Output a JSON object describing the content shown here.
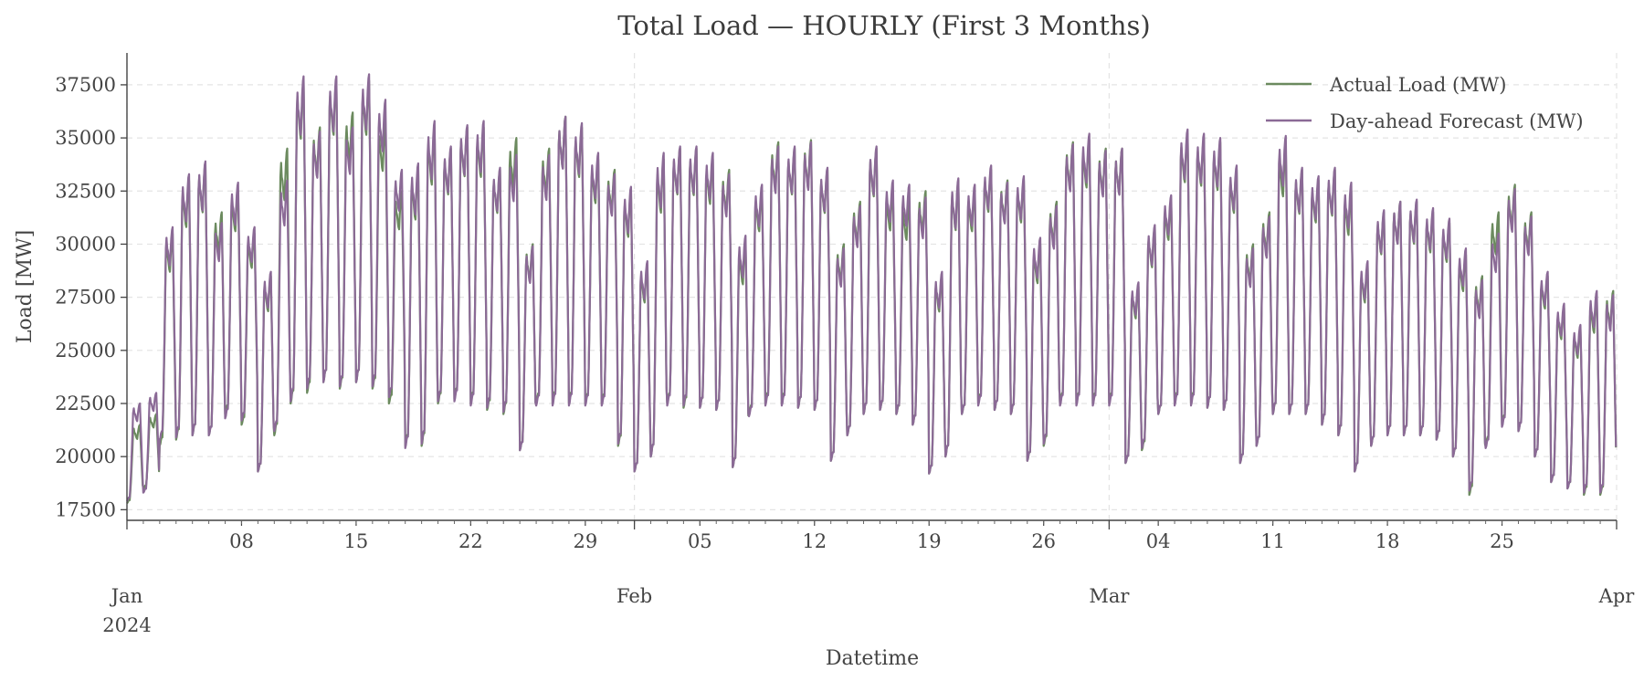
{
  "chart_data": {
    "type": "line",
    "title": "Total Load — HOURLY (First 3 Months)",
    "xlabel": "Datetime",
    "ylabel": "Load [MW]",
    "x_range": [
      "2024-01-01T00:00",
      "2024-04-01T00:00"
    ],
    "ylim": [
      17000,
      39000
    ],
    "y_ticks": [
      17500,
      20000,
      22500,
      25000,
      27500,
      30000,
      32500,
      35000,
      37500
    ],
    "x_minor_ticks": [
      {
        "date": "2024-01-08",
        "label": "08"
      },
      {
        "date": "2024-01-15",
        "label": "15"
      },
      {
        "date": "2024-01-22",
        "label": "22"
      },
      {
        "date": "2024-01-29",
        "label": "29"
      },
      {
        "date": "2024-02-05",
        "label": "05"
      },
      {
        "date": "2024-02-12",
        "label": "12"
      },
      {
        "date": "2024-02-19",
        "label": "19"
      },
      {
        "date": "2024-02-26",
        "label": "26"
      },
      {
        "date": "2024-03-04",
        "label": "04"
      },
      {
        "date": "2024-03-11",
        "label": "11"
      },
      {
        "date": "2024-03-18",
        "label": "18"
      },
      {
        "date": "2024-03-25",
        "label": "25"
      }
    ],
    "x_major_ticks": [
      {
        "date": "2024-01-01",
        "label": "Jan",
        "sublabel": "2024"
      },
      {
        "date": "2024-02-01",
        "label": "Feb",
        "sublabel": ""
      },
      {
        "date": "2024-03-01",
        "label": "Mar",
        "sublabel": ""
      },
      {
        "date": "2024-04-01",
        "label": "Apr",
        "sublabel": ""
      }
    ],
    "grid": true,
    "legend_position": "top-right",
    "series": [
      {
        "name": "Actual Load (MW)",
        "color": "#6b8a5e",
        "daily_peak_min": [
          [
            "2024-01-01",
            21500,
            17800
          ],
          [
            "2024-01-02",
            22000,
            18500
          ],
          [
            "2024-01-03",
            30500,
            20500
          ],
          [
            "2024-01-04",
            33000,
            20800
          ],
          [
            "2024-01-05",
            33800,
            21000
          ],
          [
            "2024-01-06",
            31500,
            21000
          ],
          [
            "2024-01-07",
            32500,
            22000
          ],
          [
            "2024-01-08",
            30500,
            21500
          ],
          [
            "2024-01-09",
            28500,
            19300
          ],
          [
            "2024-01-10",
            34500,
            21000
          ],
          [
            "2024-01-11",
            37700,
            22500
          ],
          [
            "2024-01-12",
            35500,
            23000
          ],
          [
            "2024-01-13",
            37700,
            23500
          ],
          [
            "2024-01-14",
            36200,
            23200
          ],
          [
            "2024-01-15",
            37700,
            23500
          ],
          [
            "2024-01-16",
            35700,
            23200
          ],
          [
            "2024-01-17",
            32500,
            22500
          ],
          [
            "2024-01-18",
            33500,
            20500
          ],
          [
            "2024-01-19",
            35500,
            20500
          ],
          [
            "2024-01-20",
            34500,
            22500
          ],
          [
            "2024-01-21",
            35500,
            22700
          ],
          [
            "2024-01-22",
            35500,
            22500
          ],
          [
            "2024-01-23",
            33500,
            22200
          ],
          [
            "2024-01-24",
            35000,
            22000
          ],
          [
            "2024-01-25",
            30000,
            20300
          ],
          [
            "2024-01-26",
            34500,
            22500
          ],
          [
            "2024-01-27",
            36000,
            22500
          ],
          [
            "2024-01-28",
            35500,
            22500
          ],
          [
            "2024-01-29",
            34000,
            22500
          ],
          [
            "2024-01-30",
            33500,
            22500
          ],
          [
            "2024-01-31",
            32500,
            20500
          ],
          [
            "2024-02-01",
            29000,
            19300
          ],
          [
            "2024-02-02",
            34000,
            20000
          ],
          [
            "2024-02-03",
            34500,
            22500
          ],
          [
            "2024-02-04",
            34500,
            22300
          ],
          [
            "2024-02-05",
            34000,
            22300
          ],
          [
            "2024-02-06",
            33500,
            22200
          ],
          [
            "2024-02-07",
            30000,
            19500
          ],
          [
            "2024-02-08",
            32500,
            22000
          ],
          [
            "2024-02-09",
            34800,
            22500
          ],
          [
            "2024-02-10",
            34500,
            22500
          ],
          [
            "2024-02-11",
            34900,
            22300
          ],
          [
            "2024-02-12",
            33500,
            22200
          ],
          [
            "2024-02-13",
            30000,
            19800
          ],
          [
            "2024-02-14",
            32000,
            21000
          ],
          [
            "2024-02-15",
            34500,
            22000
          ],
          [
            "2024-02-16",
            32500,
            22200
          ],
          [
            "2024-02-17",
            32000,
            22000
          ],
          [
            "2024-02-18",
            32500,
            21500
          ],
          [
            "2024-02-19",
            28500,
            19200
          ],
          [
            "2024-02-20",
            33000,
            20000
          ],
          [
            "2024-02-21",
            32500,
            22000
          ],
          [
            "2024-02-22",
            33500,
            22500
          ],
          [
            "2024-02-23",
            33000,
            22200
          ],
          [
            "2024-02-24",
            33000,
            22000
          ],
          [
            "2024-02-25",
            30000,
            19800
          ],
          [
            "2024-02-26",
            32000,
            20500
          ],
          [
            "2024-02-27",
            34800,
            22500
          ],
          [
            "2024-02-28",
            34900,
            22500
          ],
          [
            "2024-02-29",
            34500,
            22500
          ],
          [
            "2024-03-01",
            34500,
            22500
          ],
          [
            "2024-03-02",
            28000,
            19700
          ],
          [
            "2024-03-03",
            30800,
            20300
          ],
          [
            "2024-03-04",
            32000,
            22000
          ],
          [
            "2024-03-05",
            35200,
            22500
          ],
          [
            "2024-03-06",
            35000,
            22500
          ],
          [
            "2024-03-07",
            34800,
            22300
          ],
          [
            "2024-03-08",
            33500,
            22200
          ],
          [
            "2024-03-09",
            30000,
            19700
          ],
          [
            "2024-03-10",
            31500,
            20500
          ],
          [
            "2024-03-11",
            34500,
            22000
          ],
          [
            "2024-03-12",
            33500,
            22000
          ],
          [
            "2024-03-13",
            33000,
            22000
          ],
          [
            "2024-03-14",
            33500,
            21500
          ],
          [
            "2024-03-15",
            32500,
            21000
          ],
          [
            "2024-03-16",
            29000,
            19300
          ],
          [
            "2024-03-17",
            31500,
            20500
          ],
          [
            "2024-03-18",
            32000,
            21000
          ],
          [
            "2024-03-19",
            32000,
            21000
          ],
          [
            "2024-03-20",
            31500,
            21000
          ],
          [
            "2024-03-21",
            31000,
            20800
          ],
          [
            "2024-03-22",
            29500,
            20000
          ],
          [
            "2024-03-23",
            28500,
            18200
          ],
          [
            "2024-03-24",
            31500,
            20500
          ],
          [
            "2024-03-25",
            32800,
            21500
          ],
          [
            "2024-03-26",
            31500,
            21200
          ],
          [
            "2024-03-27",
            28500,
            20000
          ],
          [
            "2024-03-28",
            27000,
            18800
          ],
          [
            "2024-03-29",
            26000,
            18500
          ],
          [
            "2024-03-30",
            27500,
            18200
          ],
          [
            "2024-03-31",
            27800,
            18200
          ]
        ]
      },
      {
        "name": "Day-ahead Forecast (MW)",
        "color": "#8b6a96",
        "daily_peak_min": [
          [
            "2024-01-01",
            22500,
            17900
          ],
          [
            "2024-01-02",
            23000,
            18300
          ],
          [
            "2024-01-03",
            30800,
            20800
          ],
          [
            "2024-01-04",
            33300,
            20900
          ],
          [
            "2024-01-05",
            33900,
            21000
          ],
          [
            "2024-01-06",
            31000,
            21000
          ],
          [
            "2024-01-07",
            32900,
            21800
          ],
          [
            "2024-01-08",
            30800,
            21700
          ],
          [
            "2024-01-09",
            28700,
            19300
          ],
          [
            "2024-01-10",
            33000,
            21200
          ],
          [
            "2024-01-11",
            37900,
            22600
          ],
          [
            "2024-01-12",
            35300,
            23200
          ],
          [
            "2024-01-13",
            37900,
            23500
          ],
          [
            "2024-01-14",
            35500,
            23300
          ],
          [
            "2024-01-15",
            38000,
            23500
          ],
          [
            "2024-01-16",
            36800,
            23300
          ],
          [
            "2024-01-17",
            33500,
            22800
          ],
          [
            "2024-01-18",
            33800,
            20400
          ],
          [
            "2024-01-19",
            35800,
            20600
          ],
          [
            "2024-01-20",
            34600,
            22600
          ],
          [
            "2024-01-21",
            35600,
            22600
          ],
          [
            "2024-01-22",
            35800,
            22400
          ],
          [
            "2024-01-23",
            33600,
            22300
          ],
          [
            "2024-01-24",
            34200,
            22100
          ],
          [
            "2024-01-25",
            29900,
            20300
          ],
          [
            "2024-01-26",
            34200,
            22400
          ],
          [
            "2024-01-27",
            36000,
            22400
          ],
          [
            "2024-01-28",
            35700,
            22400
          ],
          [
            "2024-01-29",
            34300,
            22400
          ],
          [
            "2024-01-30",
            33300,
            22400
          ],
          [
            "2024-01-31",
            32700,
            20600
          ],
          [
            "2024-02-01",
            29200,
            19300
          ],
          [
            "2024-02-02",
            34300,
            20000
          ],
          [
            "2024-02-03",
            34600,
            22400
          ],
          [
            "2024-02-04",
            34600,
            22400
          ],
          [
            "2024-02-05",
            34300,
            22300
          ],
          [
            "2024-02-06",
            33300,
            22200
          ],
          [
            "2024-02-07",
            30400,
            19500
          ],
          [
            "2024-02-08",
            32800,
            21900
          ],
          [
            "2024-02-09",
            34600,
            22400
          ],
          [
            "2024-02-10",
            34600,
            22400
          ],
          [
            "2024-02-11",
            34800,
            22300
          ],
          [
            "2024-02-12",
            33600,
            22200
          ],
          [
            "2024-02-13",
            29800,
            19800
          ],
          [
            "2024-02-14",
            31800,
            21000
          ],
          [
            "2024-02-15",
            34600,
            22000
          ],
          [
            "2024-02-16",
            33000,
            22200
          ],
          [
            "2024-02-17",
            32800,
            22000
          ],
          [
            "2024-02-18",
            32200,
            21500
          ],
          [
            "2024-02-19",
            28700,
            19200
          ],
          [
            "2024-02-20",
            33100,
            20000
          ],
          [
            "2024-02-21",
            32800,
            22000
          ],
          [
            "2024-02-22",
            33700,
            22400
          ],
          [
            "2024-02-23",
            32900,
            22200
          ],
          [
            "2024-02-24",
            33200,
            22000
          ],
          [
            "2024-02-25",
            30300,
            19800
          ],
          [
            "2024-02-26",
            31800,
            20600
          ],
          [
            "2024-02-27",
            34700,
            22400
          ],
          [
            "2024-02-28",
            35200,
            22400
          ],
          [
            "2024-02-29",
            34400,
            22400
          ],
          [
            "2024-03-01",
            34500,
            22400
          ],
          [
            "2024-03-02",
            28200,
            19700
          ],
          [
            "2024-03-03",
            30900,
            20400
          ],
          [
            "2024-03-04",
            32300,
            22000
          ],
          [
            "2024-03-05",
            35400,
            22400
          ],
          [
            "2024-03-06",
            35200,
            22400
          ],
          [
            "2024-03-07",
            35000,
            22300
          ],
          [
            "2024-03-08",
            33700,
            22200
          ],
          [
            "2024-03-09",
            29800,
            19700
          ],
          [
            "2024-03-10",
            31300,
            20500
          ],
          [
            "2024-03-11",
            35100,
            22000
          ],
          [
            "2024-03-12",
            33600,
            22000
          ],
          [
            "2024-03-13",
            33200,
            22000
          ],
          [
            "2024-03-14",
            33600,
            21500
          ],
          [
            "2024-03-15",
            32900,
            21000
          ],
          [
            "2024-03-16",
            29200,
            19300
          ],
          [
            "2024-03-17",
            31600,
            20500
          ],
          [
            "2024-03-18",
            32000,
            21000
          ],
          [
            "2024-03-19",
            32100,
            21000
          ],
          [
            "2024-03-20",
            31700,
            21000
          ],
          [
            "2024-03-21",
            31200,
            20800
          ],
          [
            "2024-03-22",
            29800,
            20000
          ],
          [
            "2024-03-23",
            28300,
            18400
          ],
          [
            "2024-03-24",
            30500,
            20400
          ],
          [
            "2024-03-25",
            32600,
            21400
          ],
          [
            "2024-03-26",
            31300,
            21200
          ],
          [
            "2024-03-27",
            28700,
            20000
          ],
          [
            "2024-03-28",
            27200,
            18800
          ],
          [
            "2024-03-29",
            26200,
            18500
          ],
          [
            "2024-03-30",
            27800,
            18300
          ],
          [
            "2024-03-31",
            27600,
            18300
          ]
        ]
      }
    ]
  }
}
